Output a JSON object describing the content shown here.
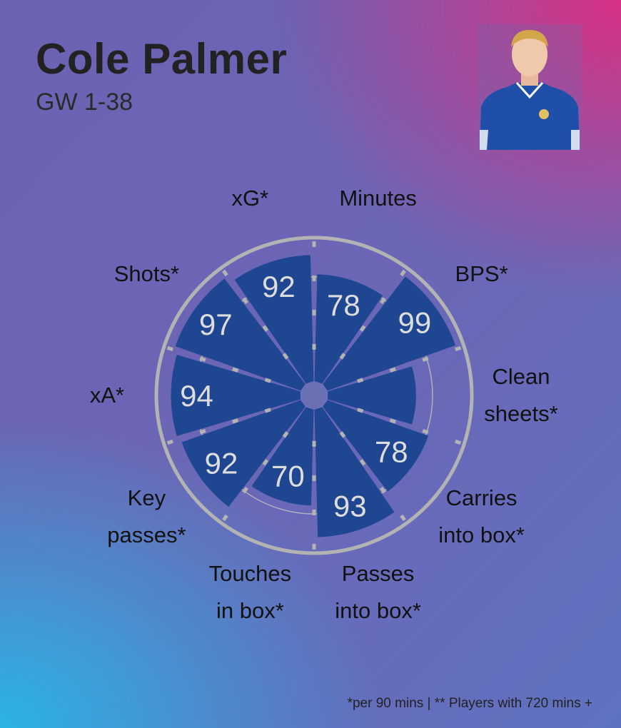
{
  "header": {
    "player_name": "Cole Palmer",
    "subtitle": "GW 1-38"
  },
  "photo": {
    "icon": "player-headshot-icon",
    "shirt_color": "#1f4fa8"
  },
  "chart_data": {
    "type": "radar-bar",
    "range": [
      0,
      100
    ],
    "value_order": "clockwise from top",
    "colors": {
      "bar": "#1f4690",
      "ring": "#b3b3b3",
      "value_text": "#dddddd"
    },
    "metrics": [
      {
        "label": "Minutes",
        "value": 78
      },
      {
        "label": "BPS*",
        "value": 99
      },
      {
        "label": "Clean\nsheets*",
        "value": 64
      },
      {
        "label": "Carries\ninto box*",
        "value": 78
      },
      {
        "label": "Passes\ninto box*",
        "value": 93
      },
      {
        "label": "Touches\nin box*",
        "value": 70
      },
      {
        "label": "Key\npasses*",
        "value": 92
      },
      {
        "label": "xA*",
        "value": 94
      },
      {
        "label": "Shots*",
        "value": 97
      },
      {
        "label": "xG*",
        "value": 92
      }
    ],
    "value_labels": [
      "78",
      "99",
      "",
      "78",
      "93",
      "70",
      "92",
      "94",
      "97",
      "92"
    ]
  },
  "footnote": "*per 90 mins | ** Players with 720 mins +"
}
